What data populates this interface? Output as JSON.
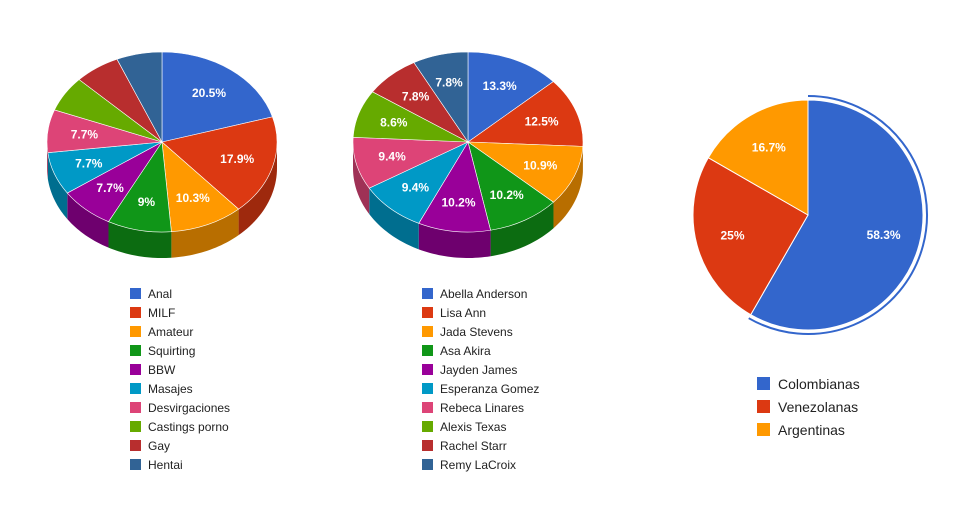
{
  "chart_data": [
    {
      "type": "pie",
      "style": "3d",
      "show_labels_min_pct": 7,
      "categories": [
        "Anal",
        "MILF",
        "Amateur",
        "Squirting",
        "BBW",
        "Masajes",
        "Desvirgaciones",
        "Castings porno",
        "Gay",
        "Hentai"
      ],
      "values": [
        20.5,
        17.9,
        10.3,
        9,
        7.7,
        7.7,
        7.7,
        6.4,
        6.4,
        6.4
      ],
      "labels": [
        "20.5%",
        "17.9%",
        "10.3%",
        "9%",
        "7.7%",
        "7.7%",
        "7.7%",
        "",
        "",
        ""
      ],
      "colors": [
        "#3366cc",
        "#dc3912",
        "#ff9900",
        "#109618",
        "#990099",
        "#0099c6",
        "#dd4477",
        "#66aa00",
        "#b82e2e",
        "#316395"
      ],
      "legend": "bottom"
    },
    {
      "type": "pie",
      "style": "3d",
      "categories": [
        "Abella Anderson",
        "Lisa Ann",
        "Jada Stevens",
        "Asa Akira",
        "Jayden James",
        "Esperanza Gomez",
        "Rebeca Linares",
        "Alexis Texas",
        "Rachel Starr",
        "Remy LaCroix"
      ],
      "values": [
        13.3,
        12.5,
        10.9,
        10.2,
        10.2,
        9.4,
        9.4,
        8.6,
        7.8,
        7.8
      ],
      "labels": [
        "13.3%",
        "12.5%",
        "10.9%",
        "10.2%",
        "10.2%",
        "9.4%",
        "9.4%",
        "8.6%",
        "7.8%",
        "7.8%"
      ],
      "colors": [
        "#3366cc",
        "#dc3912",
        "#ff9900",
        "#109618",
        "#990099",
        "#0099c6",
        "#dd4477",
        "#66aa00",
        "#b82e2e",
        "#316395"
      ],
      "legend": "bottom"
    },
    {
      "type": "pie",
      "style": "2d",
      "categories": [
        "Colombianas",
        "Venezolanas",
        "Argentinas"
      ],
      "values": [
        58.3,
        25,
        16.7
      ],
      "labels": [
        "58.3%",
        "25%",
        "16.7%"
      ],
      "colors": [
        "#3366cc",
        "#dc3912",
        "#ff9900"
      ],
      "highlighted_slice": "Colombianas",
      "legend": "bottom"
    }
  ]
}
